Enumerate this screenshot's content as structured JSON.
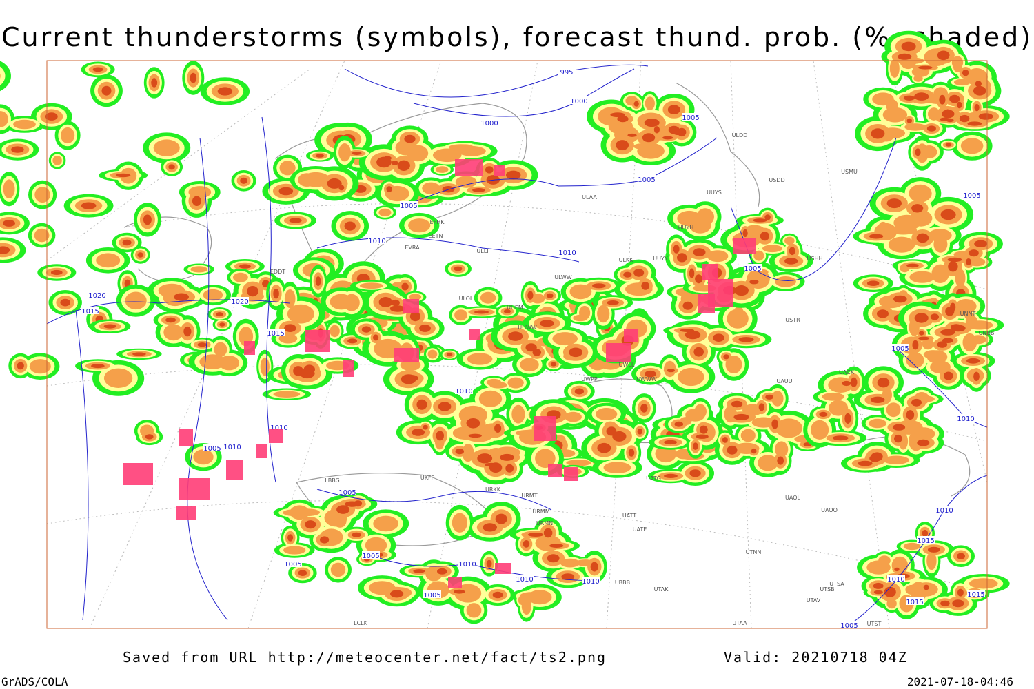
{
  "title": "Current thunderstorms (symbols), forecast thund. prob. (%, shaded)",
  "footer": {
    "source": "Saved from URL http://meteocenter.net/fact/ts2.png",
    "valid": "Valid: 20210718 04Z",
    "software": "GrADS/COLA",
    "timestamp": "2021-07-18-04:46"
  },
  "isobar_labels": [
    "995",
    "1000",
    "1000",
    "1005",
    "1005",
    "1005",
    "1010",
    "1010",
    "1020",
    "1015",
    "1020",
    "1015",
    "1005",
    "1005",
    "1005",
    "1010",
    "1010",
    "1010",
    "1005",
    "1010",
    "1005",
    "1005",
    "1005",
    "1010",
    "1010",
    "1005",
    "1010",
    "1010",
    "1015",
    "1010",
    "1015",
    "1015",
    "1005"
  ],
  "stations": [
    "ULDD",
    "USMU",
    "USDD",
    "UUYS",
    "ULAA",
    "EFHK",
    "EETN",
    "ULLI",
    "EVRA",
    "ULKK",
    "UUYY",
    "UUYH",
    "USHH",
    "ULWW",
    "EDDT",
    "UUEM",
    "ULOL",
    "UUWW",
    "UWLL",
    "UWWW",
    "UWPP",
    "UACK",
    "UAUU",
    "USTR",
    "UAOL",
    "UAOO",
    "UATG",
    "UATE",
    "UATT",
    "URMT",
    "URMM",
    "URMN",
    "URKK",
    "UKFF",
    "LBBG",
    "UTNN",
    "UTAK",
    "UBBB",
    "UTSA",
    "UTSB",
    "UTAV",
    "UTAA",
    "LCLK",
    "UTST",
    "UNNT",
    "UNBB"
  ]
}
